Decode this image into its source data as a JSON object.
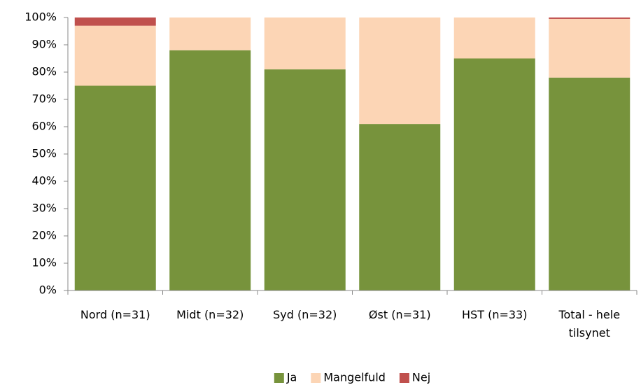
{
  "chart_data": {
    "type": "stacked_bar",
    "categories": [
      "Nord (n=31)",
      "Midt (n=32)",
      "Syd (n=32)",
      "Øst (n=31)",
      "HST (n=33)",
      "Total - hele tilsynet"
    ],
    "series": [
      {
        "name": "Ja",
        "color": "#77933c",
        "values": [
          75,
          88,
          81,
          61,
          85,
          78
        ]
      },
      {
        "name": "Mangelfuld",
        "color": "#fcd5b5",
        "values": [
          22,
          12,
          19,
          39,
          15,
          21.5
        ]
      },
      {
        "name": "Nej",
        "color": "#c0504d",
        "values": [
          3,
          0,
          0,
          0,
          0,
          0.5
        ]
      }
    ],
    "ylim": [
      0,
      100
    ],
    "yticks": [
      {
        "value": 0,
        "label": "0%"
      },
      {
        "value": 10,
        "label": "10%"
      },
      {
        "value": 20,
        "label": "20%"
      },
      {
        "value": 30,
        "label": "30%"
      },
      {
        "value": 40,
        "label": "40%"
      },
      {
        "value": 50,
        "label": "50%"
      },
      {
        "value": 60,
        "label": "60%"
      },
      {
        "value": 70,
        "label": "70%"
      },
      {
        "value": 80,
        "label": "80%"
      },
      {
        "value": 90,
        "label": "90%"
      },
      {
        "value": 100,
        "label": "100%"
      }
    ],
    "legend": "bottom"
  }
}
